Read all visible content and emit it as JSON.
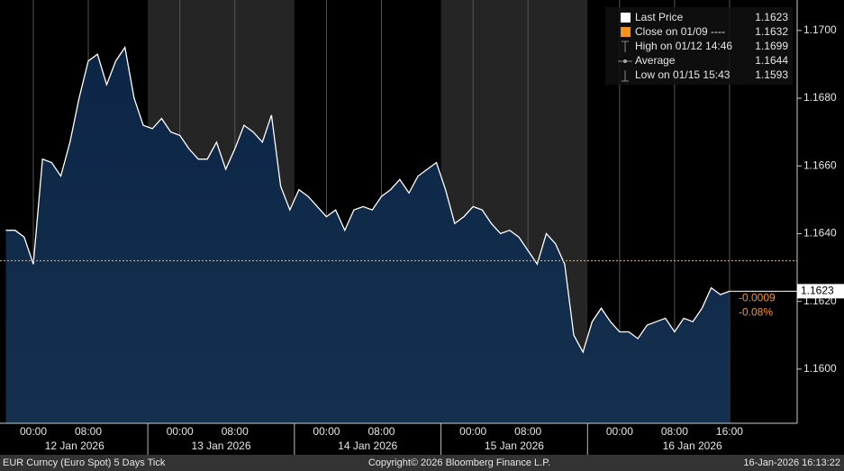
{
  "chart_data": {
    "type": "area",
    "categories": [
      null,
      null,
      null,
      "00:00",
      null,
      null,
      null,
      null,
      null,
      "08:00",
      null,
      null,
      null,
      null,
      null,
      null,
      null,
      null,
      null,
      "00:00",
      null,
      null,
      null,
      null,
      null,
      "08:00",
      null,
      null,
      null,
      null,
      null,
      null,
      null,
      null,
      null,
      "00:00",
      null,
      null,
      null,
      null,
      null,
      "08:00",
      null,
      null,
      null,
      null,
      null,
      null,
      null,
      null,
      null,
      "00:00",
      null,
      null,
      null,
      null,
      null,
      "08:00",
      null,
      null,
      null,
      null,
      null,
      null,
      null,
      null,
      null,
      "00:00",
      null,
      null,
      null,
      null,
      null,
      "08:00",
      null,
      null,
      null,
      null,
      null,
      "16:00"
    ],
    "day_labels": [
      "12 Jan 2026",
      "13 Jan 2026",
      "14 Jan 2026",
      "15 Jan 2026",
      "16 Jan 2026"
    ],
    "series": [
      {
        "name": "Last Price",
        "color": "#ffffff",
        "values": [
          1.1641,
          1.1641,
          1.1639,
          1.1631,
          1.1662,
          1.1661,
          1.1657,
          1.1667,
          1.168,
          1.1691,
          1.1693,
          1.1684,
          1.1691,
          1.1695,
          1.168,
          1.1672,
          1.1671,
          1.1674,
          1.167,
          1.1669,
          1.1665,
          1.1662,
          1.1662,
          1.1667,
          1.1659,
          1.1665,
          1.1672,
          1.167,
          1.1667,
          1.1675,
          1.1654,
          1.1647,
          1.1653,
          1.1651,
          1.1648,
          1.1645,
          1.1647,
          1.1641,
          1.1647,
          1.1648,
          1.1647,
          1.1651,
          1.1653,
          1.1656,
          1.1652,
          1.1657,
          1.1659,
          1.1661,
          1.1653,
          1.1643,
          1.1645,
          1.1648,
          1.1647,
          1.1643,
          1.164,
          1.1641,
          1.1639,
          1.1635,
          1.1631,
          1.164,
          1.1637,
          1.1631,
          1.161,
          1.1605,
          1.1614,
          1.1618,
          1.1614,
          1.1611,
          1.1611,
          1.1609,
          1.1613,
          1.1614,
          1.1615,
          1.1611,
          1.1615,
          1.1614,
          1.1618,
          1.1624,
          1.1622,
          1.1623
        ]
      }
    ],
    "close": 1.1632,
    "close_color": "#f7941d",
    "last_price": 1.1623,
    "change": -0.0009,
    "change_pct": {
      "value": -0.08,
      "label": "-0.08%"
    },
    "ylim": [
      1.1584,
      1.1709
    ],
    "yticks": [
      {
        "value": 1.16,
        "label": "1.1600"
      },
      {
        "value": 1.162,
        "label": "1.1620"
      },
      {
        "value": 1.164,
        "label": "1.1640"
      },
      {
        "value": 1.166,
        "label": "1.1660"
      },
      {
        "value": 1.168,
        "label": "1.1680"
      },
      {
        "value": 1.17,
        "label": "1.1700"
      }
    ],
    "grid": true,
    "legend": [
      {
        "label": "Last Price",
        "value": "1.1623"
      },
      {
        "label": "Close on 01/09 ----",
        "value": "1.1632"
      },
      {
        "label": "High on 01/12 14:46",
        "value": "1.1699"
      },
      {
        "label": "Average",
        "value": "1.1644"
      },
      {
        "label": "Low on 01/15 15:43",
        "value": "1.1593"
      }
    ],
    "footer": {
      "left": "EUR Curncy (Euro Spot) 5 Days Tick",
      "center": "Copyright© 2026 Bloomberg Finance L.P.",
      "right": "16-Jan-2026 16:13:22"
    }
  }
}
